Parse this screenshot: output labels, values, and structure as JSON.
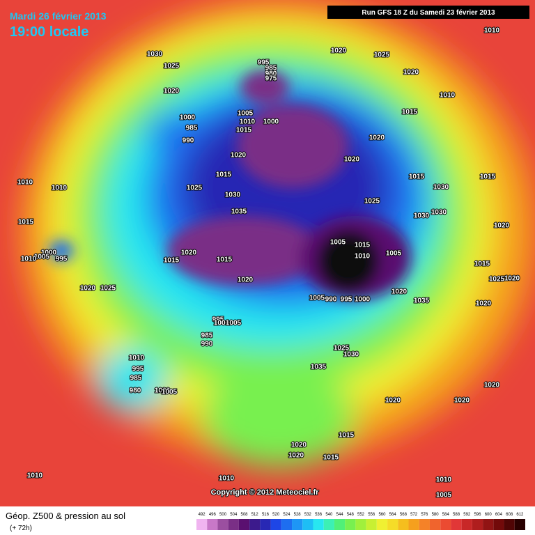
{
  "header": {
    "date": "Mardi 26 février 2013",
    "time": "19:00 locale",
    "run": "Run GFS 18 Z du Samedi 23 février 2013"
  },
  "copyright": "Copyright © 2012 Meteociel.fr",
  "legend": {
    "title": "Géop. Z500 & pression au sol",
    "subtitle": "(+ 72h)",
    "ticks": [
      492,
      496,
      500,
      504,
      508,
      512,
      516,
      520,
      524,
      528,
      532,
      536,
      540,
      544,
      548,
      552,
      556,
      560,
      564,
      568,
      572,
      576,
      580,
      584,
      588,
      592,
      596,
      600,
      604,
      608,
      612
    ],
    "colors": [
      "#f0b4f0",
      "#c878c8",
      "#9b4fa0",
      "#7a2f86",
      "#5a1070",
      "#3c1a8c",
      "#2828b4",
      "#1e46e6",
      "#1e6ef0",
      "#1e96f5",
      "#1ebef5",
      "#28e6f0",
      "#3cf0b4",
      "#50f078",
      "#78f050",
      "#a0f03c",
      "#c8f032",
      "#f0f032",
      "#f5dc28",
      "#f5be1e",
      "#f5a01e",
      "#f58228",
      "#f0642d",
      "#eb4b32",
      "#e13737",
      "#c82828",
      "#af1e1e",
      "#911414",
      "#730a0a",
      "#500505",
      "#280000"
    ]
  },
  "isobar_labels": [
    1030,
    1025,
    1020,
    1020,
    1025,
    1010,
    1020,
    1010,
    995,
    985,
    980,
    975,
    1005,
    1010,
    1015,
    1000,
    1000,
    985,
    990,
    1015,
    1020,
    1020,
    1020,
    1015,
    1025,
    1030,
    1035,
    1025,
    1015,
    1030,
    1030,
    1030,
    1010,
    1010,
    1015,
    1000,
    1005,
    995,
    1010,
    1020,
    1025,
    1015,
    1020,
    1015,
    1020,
    1005,
    1015,
    1010,
    1005,
    1020,
    1035,
    1005,
    990,
    995,
    1000,
    995,
    1000,
    1005,
    985,
    990,
    1025,
    1030,
    1035,
    1010,
    995,
    985,
    980,
    1000,
    1005,
    1015,
    1020,
    1015,
    1025,
    1020,
    1020,
    1020,
    1020,
    1020,
    1015,
    1020,
    1020,
    1015,
    1010,
    1010,
    1010,
    1005
  ]
}
